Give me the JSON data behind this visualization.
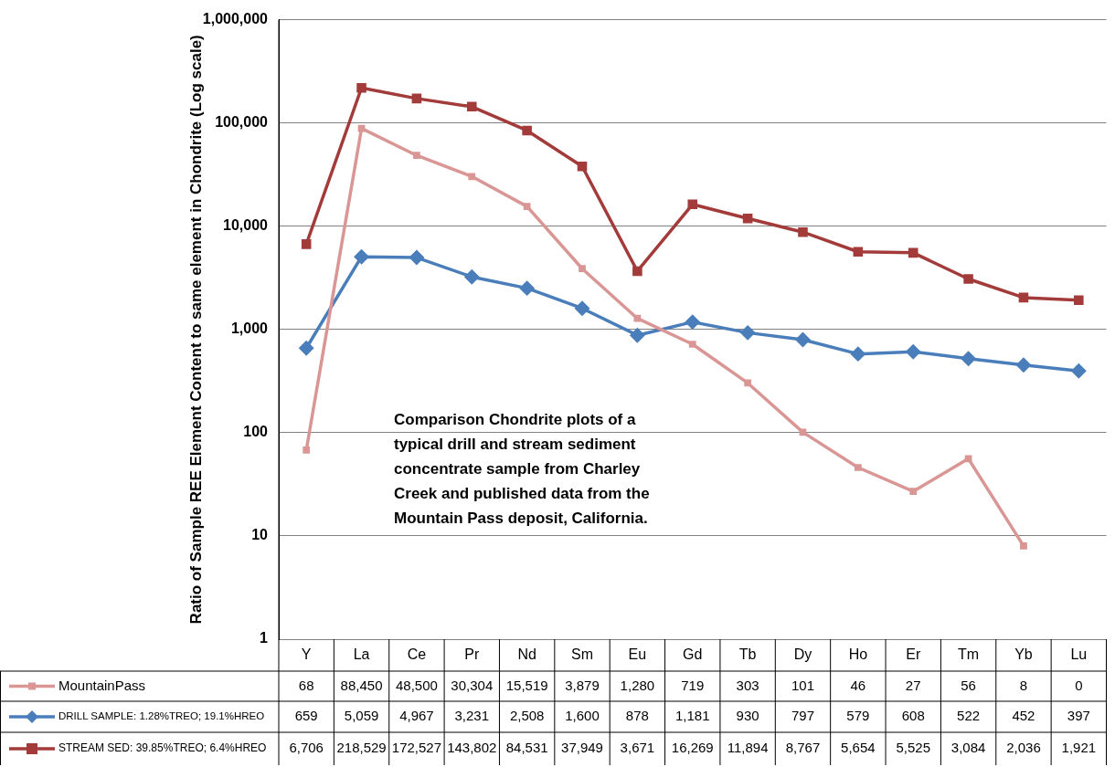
{
  "chart_data": {
    "type": "line",
    "ylabel": "Ratio of Sample REE Element Content to same element in Chondrite (Log scale)",
    "categories": [
      "Y",
      "La",
      "Ce",
      "Pr",
      "Nd",
      "Sm",
      "Eu",
      "Gd",
      "Tb",
      "Dy",
      "Ho",
      "Er",
      "Tm",
      "Yb",
      "Lu"
    ],
    "series": [
      {
        "name": "MountainPass",
        "color": "#d99694",
        "marker": "square",
        "values": [
          68,
          88450,
          48500,
          30304,
          15519,
          3879,
          1280,
          719,
          303,
          101,
          46,
          27,
          56,
          8,
          null
        ],
        "value_labels": [
          "68",
          "88,450",
          "48,500",
          "30,304",
          "15,519",
          "3,879",
          "1,280",
          "719",
          "303",
          "101",
          "46",
          "27",
          "56",
          "8",
          "0"
        ]
      },
      {
        "name": "DRILL SAMPLE: 1.28%TREO; 19.1%HREO",
        "color": "#4a7ebb",
        "marker": "diamond",
        "values": [
          659,
          5059,
          4967,
          3231,
          2508,
          1600,
          878,
          1181,
          930,
          797,
          579,
          608,
          522,
          452,
          397
        ],
        "value_labels": [
          "659",
          "5,059",
          "4,967",
          "3,231",
          "2,508",
          "1,600",
          "878",
          "1,181",
          "930",
          "797",
          "579",
          "608",
          "522",
          "452",
          "397"
        ]
      },
      {
        "name": "STREAM SED: 39.85%TREO; 6.4%HREO",
        "color": "#a33b3b",
        "marker": "square",
        "values": [
          6706,
          218529,
          172527,
          143802,
          84531,
          37949,
          3671,
          16269,
          11894,
          8767,
          5654,
          5525,
          3084,
          2036,
          1921
        ],
        "value_labels": [
          "6,706",
          "218,529",
          "172,527",
          "143,802",
          "84,531",
          "37,949",
          "3,671",
          "16,269",
          "11,894",
          "8,767",
          "5,654",
          "5,525",
          "3,084",
          "2,036",
          "1,921"
        ]
      }
    ],
    "log": "y",
    "ylim": [
      1,
      1000000
    ],
    "yticks": [
      1,
      10,
      100,
      {
        "value": 1000,
        "label": "1,000"
      },
      {
        "value": 10000,
        "label": "10,000"
      },
      {
        "value": 100000,
        "label": "100,000"
      },
      {
        "value": 1000000,
        "label": "1,000,000"
      }
    ],
    "grid": "y",
    "legend": "bottom",
    "line_style": "solid",
    "annotations": [
      "Comparison Chondrite plots of  a typical drill  and stream sediment concentrate sample from Charley Creek and published data from the Mountain Pass deposit, California."
    ]
  }
}
